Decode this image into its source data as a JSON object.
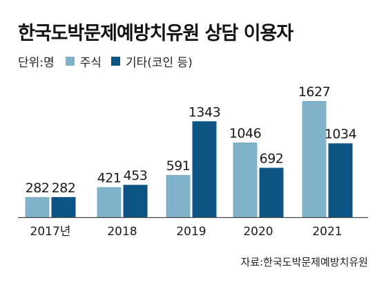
{
  "title": "한국도박문제예방치유원 상담 이용자",
  "legend": {
    "unit": "단위:명",
    "items": [
      {
        "label": "주식",
        "color": "#7fb2c8"
      },
      {
        "label": "기타(코인 등)",
        "color": "#0b5483"
      }
    ]
  },
  "source": "자료:한국도박문제예방치유원",
  "chart_data": {
    "type": "bar",
    "categories": [
      "2017년",
      "2018",
      "2019",
      "2020",
      "2021"
    ],
    "series": [
      {
        "name": "주식",
        "values": [
          282,
          421,
          591,
          1046,
          1627
        ],
        "color": "#7fb2c8"
      },
      {
        "name": "기타(코인 등)",
        "values": [
          282,
          453,
          1343,
          692,
          1034
        ],
        "color": "#0b5483"
      }
    ],
    "title": "한국도박문제예방치유원 상담 이용자",
    "xlabel": "",
    "ylabel": "",
    "unit": "단위:명",
    "ylim": [
      0,
      1700
    ],
    "grid": false,
    "legend_position": "top-left"
  }
}
